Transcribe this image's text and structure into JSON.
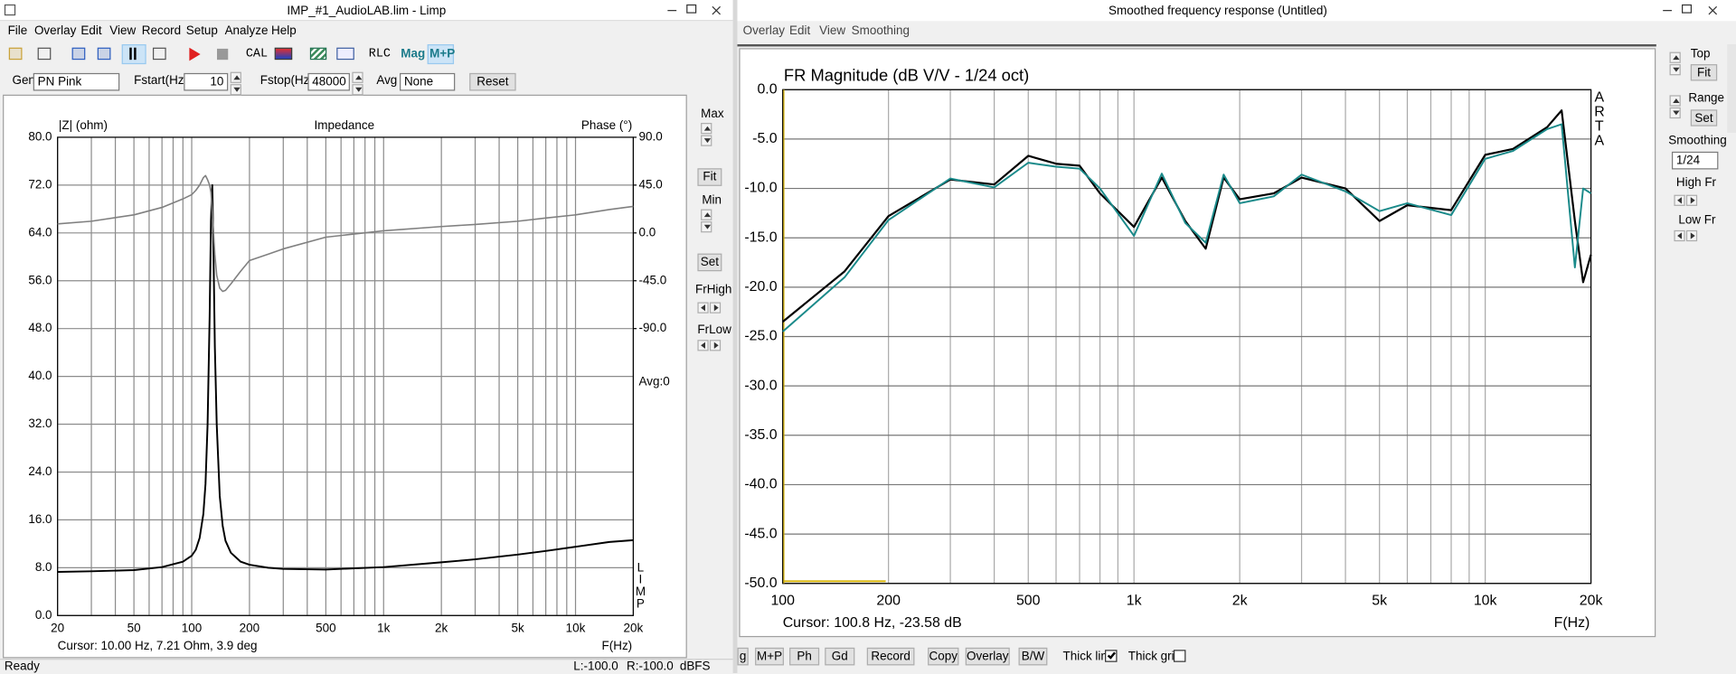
{
  "left_window": {
    "title": "IMP_#1_AudioLAB.lim - Limp",
    "menu": [
      "File",
      "Overlay",
      "Edit",
      "View",
      "Record",
      "Setup",
      "Analyze",
      "Help"
    ],
    "toolbar": [
      "CAL",
      "RLC",
      "Mag",
      "M+P"
    ],
    "gen": {
      "label": "Gen",
      "value": "PN Pink"
    },
    "fstart": {
      "label": "Fstart(Hz)",
      "value": 10
    },
    "fstop": {
      "label": "Fstop(Hz)",
      "value": 48000
    },
    "avg": {
      "label": "Avg",
      "value": "None"
    },
    "reset": "Reset",
    "side_panel": {
      "max": "Max",
      "fit": "Fit",
      "min": "Min",
      "set": "Set",
      "fr_high": "FrHigh",
      "fr_low": "FrLow"
    },
    "status": {
      "ready": "Ready",
      "left": "L:-100.0",
      "right": "R:-100.0",
      "unit": "dBFS"
    },
    "chart_data": {
      "type": "line",
      "title": "Impedance",
      "y_label": "|Z| (ohm)",
      "y2_label": "Phase (°)",
      "x_label": "F(Hz)",
      "x_scale": "log",
      "grid": true,
      "annotation": "Avg:0",
      "side_label": "LIMP",
      "cursor": "Cursor: 10.00 Hz, 7.21 Ohm, 3.9 deg",
      "xlim": [
        20,
        20000
      ],
      "xticks": [
        20,
        50,
        100,
        200,
        500,
        {
          "value": 1000,
          "label": "1k"
        },
        {
          "value": 2000,
          "label": "2k"
        },
        {
          "value": 5000,
          "label": "5k"
        },
        {
          "value": 10000,
          "label": "10k"
        },
        {
          "value": 20000,
          "label": "20k"
        }
      ],
      "x_minor_grid": [
        30,
        40,
        60,
        70,
        80,
        90,
        300,
        400,
        600,
        700,
        800,
        900,
        3000,
        4000,
        6000,
        7000,
        8000,
        9000
      ],
      "ylim": [
        0,
        80
      ],
      "yticks": [
        {
          "value": 0,
          "label": "0.0"
        },
        {
          "value": 8,
          "label": "8.0"
        },
        {
          "value": 16,
          "label": "16.0"
        },
        {
          "value": 24,
          "label": "24.0"
        },
        {
          "value": 32,
          "label": "32.0"
        },
        {
          "value": 40,
          "label": "40.0"
        },
        {
          "value": 48,
          "label": "48.0"
        },
        {
          "value": 56,
          "label": "56.0"
        },
        {
          "value": 64,
          "label": "64.0"
        },
        {
          "value": 72,
          "label": "72.0"
        },
        {
          "value": 80,
          "label": "80.0"
        }
      ],
      "y2lim": [
        -360,
        90
      ],
      "y2ticks": [
        {
          "value": 90,
          "label": "90.0"
        },
        {
          "value": 45,
          "label": "45.0"
        },
        {
          "value": 0,
          "label": "0.0"
        },
        {
          "value": -45,
          "label": "-45.0"
        },
        {
          "value": -90,
          "label": "-90.0"
        }
      ],
      "x": [
        20,
        30,
        50,
        70,
        90,
        100,
        105,
        110,
        115,
        118,
        121,
        124,
        126,
        128,
        130,
        132,
        135,
        140,
        145,
        150,
        160,
        180,
        200,
        250,
        300,
        500,
        1000,
        2000,
        3000,
        5000,
        7000,
        10000,
        15000,
        20000
      ],
      "series": [
        {
          "color": "#000000",
          "values": [
            7.3,
            7.4,
            7.6,
            8.1,
            9,
            10,
            11,
            13,
            17,
            22,
            32,
            50,
            66,
            72,
            60,
            45,
            32,
            20,
            15,
            12.5,
            10.5,
            9,
            8.5,
            8,
            7.8,
            7.7,
            8.1,
            8.9,
            9.4,
            10.2,
            10.8,
            11.5,
            12.3,
            12.6
          ]
        },
        {
          "color": "#808080",
          "axis": "y2",
          "values": [
            8.5,
            11,
            17,
            24,
            32,
            36,
            40,
            45,
            52,
            54,
            50,
            45,
            38,
            20,
            0,
            -20,
            -40,
            -52,
            -55,
            -54,
            -48,
            -36,
            -26,
            -20,
            -15,
            -4,
            2,
            6,
            8,
            11,
            14,
            17,
            22,
            25
          ]
        }
      ]
    }
  },
  "right_window": {
    "title": "Smoothed frequency response (Untitled)",
    "menu": [
      "Overlay",
      "Edit",
      "View",
      "Smoothing"
    ],
    "side_panel": {
      "top": "Top",
      "fit": "Fit",
      "range": "Range",
      "set": "Set",
      "smoothing": "Smoothing",
      "smoothing_value": "1/24",
      "high_fr": "High Fr",
      "low_fr": "Low Fr"
    },
    "bottom_toolbar": {
      "buttons": [
        "g",
        "M+P",
        "Ph",
        "Gd",
        "Record",
        "Copy",
        "Overlay",
        "B/W"
      ],
      "thick_line": {
        "label": "Thick line",
        "checked": true
      },
      "thick_grid": {
        "label": "Thick grid",
        "checked": false
      }
    },
    "chart_data": {
      "type": "line",
      "title": "FR Magnitude (dB V/V - 1/24 oct)",
      "x_label": "F(Hz)",
      "x_scale": "log",
      "grid": true,
      "side_label": "ARTA",
      "cursor": "Cursor: 100.8 Hz, -23.58 dB",
      "xlim": [
        100,
        20000
      ],
      "xticks": [
        100,
        200,
        500,
        {
          "value": 1000,
          "label": "1k"
        },
        {
          "value": 2000,
          "label": "2k"
        },
        {
          "value": 5000,
          "label": "5k"
        },
        {
          "value": 10000,
          "label": "10k"
        },
        {
          "value": 20000,
          "label": "20k"
        }
      ],
      "x_minor_grid": [
        300,
        400,
        600,
        700,
        800,
        900,
        3000,
        4000,
        6000,
        7000,
        8000,
        9000
      ],
      "ylim": [
        -50,
        0
      ],
      "yticks": [
        {
          "value": 0,
          "label": "0.0"
        },
        {
          "value": -5,
          "label": "-5.0"
        },
        {
          "value": -10,
          "label": "-10.0"
        },
        {
          "value": -15,
          "label": "-15.0"
        },
        {
          "value": -20,
          "label": "-20.0"
        },
        {
          "value": -25,
          "label": "-25.0"
        },
        {
          "value": -30,
          "label": "-30.0"
        },
        {
          "value": -35,
          "label": "-35.0"
        },
        {
          "value": -40,
          "label": "-40.0"
        },
        {
          "value": -45,
          "label": "-45.0"
        },
        {
          "value": -50,
          "label": "-50.0"
        }
      ],
      "x": [
        100,
        150,
        200,
        300,
        400,
        500,
        600,
        700,
        800,
        1000,
        1200,
        1400,
        1600,
        1800,
        2000,
        2500,
        3000,
        4000,
        5000,
        6000,
        8000,
        10000,
        12000,
        15000,
        16500,
        18000,
        19000,
        20000
      ],
      "series": [
        {
          "color": "#000000",
          "values": [
            -23.5,
            -18.4,
            -12.8,
            -9.1,
            -9.6,
            -6.7,
            -7.5,
            -7.7,
            -10.5,
            -13.9,
            -8.9,
            -13.3,
            -16.1,
            -8.9,
            -11.1,
            -10.5,
            -8.9,
            -10,
            -13.3,
            -11.7,
            -12.2,
            -6.6,
            -6,
            -3.8,
            -2.1,
            -13.3,
            -19.5,
            -16.7
          ]
        },
        {
          "color": "#1a8a8a",
          "values": [
            -24.5,
            -19,
            -13.2,
            -9,
            -9.9,
            -7.4,
            -7.8,
            -8,
            -10,
            -14.8,
            -8.5,
            -13.5,
            -15.5,
            -8.6,
            -11.5,
            -10.8,
            -8.6,
            -10.3,
            -12.3,
            -11.5,
            -12.7,
            -7,
            -6.2,
            -4,
            -3.5,
            -18,
            -10,
            -10.5
          ]
        }
      ]
    }
  }
}
